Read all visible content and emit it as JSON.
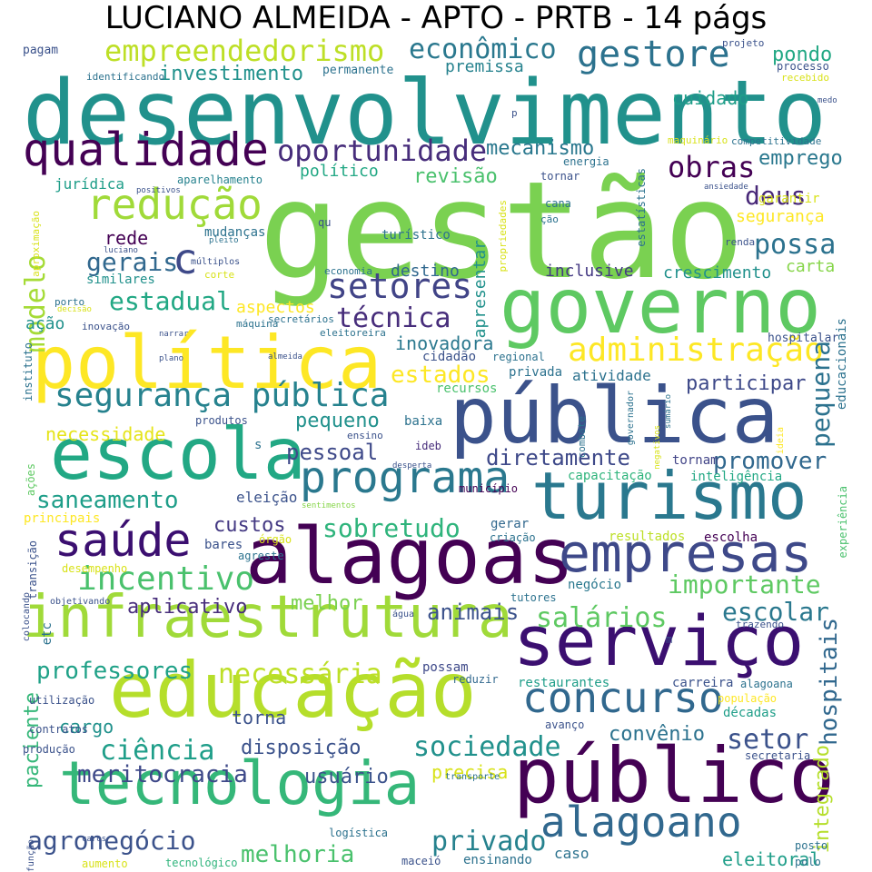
{
  "title": "LUCIANO ALMEIDA - APTO - PRTB - 14 págs",
  "words": [
    {
      "text": "gestão",
      "color": "#7ad151"
    },
    {
      "text": "desenvolvimento",
      "color": "#21918c"
    },
    {
      "text": "governo",
      "color": "#5ec962"
    },
    {
      "text": "política",
      "color": "#fde725"
    },
    {
      "text": "pública",
      "color": "#3b528b"
    },
    {
      "text": "alagoas",
      "color": "#440154"
    },
    {
      "text": "escola",
      "color": "#22a884"
    },
    {
      "text": "turismo",
      "color": "#2a788e"
    },
    {
      "text": "educação",
      "color": "#b5de2b"
    },
    {
      "text": "infraestrutura",
      "color": "#a0da39"
    },
    {
      "text": "serviço",
      "color": "#3b0f70"
    },
    {
      "text": "público",
      "color": "#440154"
    },
    {
      "text": "tecnologia",
      "color": "#35b779"
    },
    {
      "text": "empresas",
      "color": "#3e4989"
    },
    {
      "text": "programa",
      "color": "#2a788e"
    },
    {
      "text": "qualidade",
      "color": "#440154"
    },
    {
      "text": "concurso",
      "color": "#31688e"
    },
    {
      "text": "saúde",
      "color": "#3b0f70"
    },
    {
      "text": "alagoano",
      "color": "#31688e"
    },
    {
      "text": "segurança pública",
      "color": "#26828e"
    },
    {
      "text": "redução",
      "color": "#a0da39"
    },
    {
      "text": "empreendedorismo",
      "color": "#bddf26"
    },
    {
      "text": "administração",
      "color": "#fde725"
    },
    {
      "text": "incentivo",
      "color": "#4ac16d"
    },
    {
      "text": "oportunidade",
      "color": "#472d7b"
    },
    {
      "text": "gestore",
      "color": "#2c728e"
    },
    {
      "text": "econômico",
      "color": "#2a788e"
    },
    {
      "text": "setores",
      "color": "#414487"
    },
    {
      "text": "sociedade",
      "color": "#21918c"
    },
    {
      "text": "ciência",
      "color": "#1f9e89"
    },
    {
      "text": "diretamente",
      "color": "#3e4989"
    },
    {
      "text": "sobretudo",
      "color": "#2fb47c"
    },
    {
      "text": "importante",
      "color": "#5ec962"
    },
    {
      "text": "saneamento",
      "color": "#1f9e89"
    },
    {
      "text": "estadual",
      "color": "#22a884"
    },
    {
      "text": "técnica",
      "color": "#472d7b"
    },
    {
      "text": "agronegócio",
      "color": "#3b528b"
    },
    {
      "text": "meritocracia",
      "color": "#3e4989"
    },
    {
      "text": "necessária",
      "color": "#bddf26"
    },
    {
      "text": "professores",
      "color": "#1fa187"
    },
    {
      "text": "promover",
      "color": "#31688e"
    },
    {
      "text": "salários",
      "color": "#5ec962"
    },
    {
      "text": "escolar",
      "color": "#2a788e"
    },
    {
      "text": "privado",
      "color": "#26828e"
    },
    {
      "text": "melhoria",
      "color": "#4ac16d"
    },
    {
      "text": "setor",
      "color": "#3b528b"
    },
    {
      "text": "possa",
      "color": "#2c728e"
    },
    {
      "text": "obras",
      "color": "#440154"
    },
    {
      "text": "estados",
      "color": "#fde725"
    },
    {
      "text": "modelo",
      "color": "#a5db36"
    },
    {
      "text": "gerais",
      "color": "#31688e"
    },
    {
      "text": "c",
      "color": "#3e4989"
    },
    {
      "text": "pequena",
      "color": "#2c728e"
    },
    {
      "text": "hospitais",
      "color": "#31688e"
    },
    {
      "text": "deus",
      "color": "#482878"
    },
    {
      "text": "pessoal",
      "color": "#3e4989"
    },
    {
      "text": "custos",
      "color": "#443983"
    },
    {
      "text": "aplicativo",
      "color": "#472d7b"
    },
    {
      "text": "animais",
      "color": "#3b528b"
    },
    {
      "text": "usuário",
      "color": "#3b528b"
    },
    {
      "text": "disposição",
      "color": "#3b528b"
    },
    {
      "text": "convênio",
      "color": "#2c728e"
    },
    {
      "text": "participar",
      "color": "#3e4989"
    },
    {
      "text": "pequeno",
      "color": "#21918c"
    },
    {
      "text": "inovadora",
      "color": "#2a788e"
    },
    {
      "text": "mecanismo",
      "color": "#2a788e"
    },
    {
      "text": "revisão",
      "color": "#4ac16d"
    },
    {
      "text": "pondo",
      "color": "#22a884"
    },
    {
      "text": "investimento",
      "color": "#21918c"
    },
    {
      "text": "cuidado",
      "color": "#1f9e89"
    },
    {
      "text": "emprego",
      "color": "#2a788e"
    },
    {
      "text": "segurança",
      "color": "#fde725"
    },
    {
      "text": "rede",
      "color": "#440154"
    },
    {
      "text": "melhor",
      "color": "#7ad151"
    },
    {
      "text": "necessidade",
      "color": "#e5e419"
    },
    {
      "text": "paciente",
      "color": "#35b779"
    },
    {
      "text": "cargo",
      "color": "#21918c"
    },
    {
      "text": "torna",
      "color": "#3b528b"
    },
    {
      "text": "precisa",
      "color": "#d8e219"
    },
    {
      "text": "eleitoral",
      "color": "#1f9e89"
    },
    {
      "text": "integrado",
      "color": "#b5de2b"
    },
    {
      "text": "aspectos",
      "color": "#fde725"
    },
    {
      "text": "ação",
      "color": "#21918c"
    },
    {
      "text": "inclusive",
      "color": "#443983"
    },
    {
      "text": "crescimento",
      "color": "#21918c"
    },
    {
      "text": "destino",
      "color": "#31688e"
    },
    {
      "text": "carta",
      "color": "#86d549"
    },
    {
      "text": "político",
      "color": "#22a884"
    },
    {
      "text": "premissa",
      "color": "#26828e"
    },
    {
      "text": "apresentar",
      "color": "#21918c"
    },
    {
      "text": "atividade",
      "color": "#2c728e"
    },
    {
      "text": "eleição",
      "color": "#3b528b"
    },
    {
      "text": "mudanças",
      "color": "#2c728e"
    },
    {
      "text": "turístico",
      "color": "#2c728e"
    },
    {
      "text": "jurídica",
      "color": "#1f9e89"
    },
    {
      "text": "aparelhamento",
      "color": "#26828e"
    },
    {
      "text": "similares",
      "color": "#21918c"
    },
    {
      "text": "cidadão",
      "color": "#3b528b"
    },
    {
      "text": "baixa",
      "color": "#2c728e"
    },
    {
      "text": "recursos",
      "color": "#4ac16d"
    },
    {
      "text": "ideb",
      "color": "#472d7b"
    },
    {
      "text": "tornam",
      "color": "#414487"
    },
    {
      "text": "capacitação",
      "color": "#2fb47c"
    },
    {
      "text": "inteligência",
      "color": "#22a884"
    },
    {
      "text": "educacionais",
      "color": "#2c728e"
    },
    {
      "text": "gerar",
      "color": "#31688e"
    },
    {
      "text": "resultados",
      "color": "#bddf26"
    },
    {
      "text": "escolha",
      "color": "#440154"
    },
    {
      "text": "experiência",
      "color": "#4ac16d"
    },
    {
      "text": "negócio",
      "color": "#2a788e"
    },
    {
      "text": "tutores",
      "color": "#2c728e"
    },
    {
      "text": "restaurantes",
      "color": "#1f9e89"
    },
    {
      "text": "carreira",
      "color": "#3b528b"
    },
    {
      "text": "alagoana",
      "color": "#2c728e"
    },
    {
      "text": "reduzir",
      "color": "#31688e"
    },
    {
      "text": "possam",
      "color": "#3e4989"
    },
    {
      "text": "população",
      "color": "#fde725"
    },
    {
      "text": "décadas",
      "color": "#1f9e89"
    },
    {
      "text": "avanço",
      "color": "#3b528b"
    },
    {
      "text": "secretaria",
      "color": "#3b528b"
    },
    {
      "text": "posto",
      "color": "#2c728e"
    },
    {
      "text": "polo",
      "color": "#2c728e"
    },
    {
      "text": "transporte",
      "color": "#2c728e"
    },
    {
      "text": "logística",
      "color": "#2c728e"
    },
    {
      "text": "ensinando",
      "color": "#2c728e"
    },
    {
      "text": "caso",
      "color": "#2c728e"
    },
    {
      "text": "maceió",
      "color": "#3b528b"
    },
    {
      "text": "tecnológico",
      "color": "#2fb47c"
    },
    {
      "text": "aumento",
      "color": "#d8e219"
    },
    {
      "text": "função",
      "color": "#3b528b"
    },
    {
      "text": "caros",
      "color": "#3b528b"
    },
    {
      "text": "produção",
      "color": "#3b528b"
    },
    {
      "text": "contratos",
      "color": "#3b528b"
    },
    {
      "text": "utilização",
      "color": "#3b528b"
    },
    {
      "text": "objetivando",
      "color": "#3b528b"
    },
    {
      "text": "colocando",
      "color": "#3b528b"
    },
    {
      "text": "etc",
      "color": "#2c728e"
    },
    {
      "text": "desempenho",
      "color": "#d8e219"
    },
    {
      "text": "transição",
      "color": "#3b528b"
    },
    {
      "text": "principais",
      "color": "#fde725"
    },
    {
      "text": "ações",
      "color": "#5ec962"
    },
    {
      "text": "bares",
      "color": "#3b528b"
    },
    {
      "text": "órgão",
      "color": "#d8e219"
    },
    {
      "text": "agreste",
      "color": "#2c728e"
    },
    {
      "text": "criação",
      "color": "#2c728e"
    },
    {
      "text": "município",
      "color": "#440154"
    },
    {
      "text": "água",
      "color": "#3b528b"
    },
    {
      "text": "sentimentos",
      "color": "#86d549"
    },
    {
      "text": "desperta",
      "color": "#3b528b"
    },
    {
      "text": "ensino",
      "color": "#3b528b"
    },
    {
      "text": "produtos",
      "color": "#3b528b"
    },
    {
      "text": "s",
      "color": "#2c728e"
    },
    {
      "text": "combate",
      "color": "#2c728e"
    },
    {
      "text": "governador",
      "color": "#2c728e"
    },
    {
      "text": "sumário",
      "color": "#2c728e"
    },
    {
      "text": "negativos",
      "color": "#d8e219"
    },
    {
      "text": "ideia",
      "color": "#fde725"
    },
    {
      "text": "regional",
      "color": "#2c728e"
    },
    {
      "text": "privada",
      "color": "#2c728e"
    },
    {
      "text": "instituto",
      "color": "#2c728e"
    },
    {
      "text": "hospitalar",
      "color": "#3b528b"
    },
    {
      "text": "secretários",
      "color": "#2c728e"
    },
    {
      "text": "eleitoreira",
      "color": "#2c728e"
    },
    {
      "text": "máquina",
      "color": "#2c728e"
    },
    {
      "text": "almeida",
      "color": "#3b528b"
    },
    {
      "text": "plano",
      "color": "#3b528b"
    },
    {
      "text": "narrar",
      "color": "#3b528b"
    },
    {
      "text": "inovação",
      "color": "#3b528b"
    },
    {
      "text": "decisão",
      "color": "#d8e219"
    },
    {
      "text": "porto",
      "color": "#2c728e"
    },
    {
      "text": "economia",
      "color": "#2c728e"
    },
    {
      "text": "múltiplos",
      "color": "#3b528b"
    },
    {
      "text": "corte",
      "color": "#d8e219"
    },
    {
      "text": "pleito",
      "color": "#2c728e"
    },
    {
      "text": "luciano",
      "color": "#3b528b"
    },
    {
      "text": "aproximação",
      "color": "#d8e219"
    },
    {
      "text": "positivos",
      "color": "#3b528b"
    },
    {
      "text": "qu",
      "color": "#3b528b"
    },
    {
      "text": "propriedades",
      "color": "#d8e219"
    },
    {
      "text": "ção",
      "color": "#2c728e"
    },
    {
      "text": "cana",
      "color": "#2c728e"
    },
    {
      "text": "estatísticas",
      "color": "#2c728e"
    },
    {
      "text": "energia",
      "color": "#2c728e"
    },
    {
      "text": "tornar",
      "color": "#3b528b"
    },
    {
      "text": "renda",
      "color": "#3b528b"
    },
    {
      "text": "ansiedade",
      "color": "#3b528b"
    },
    {
      "text": "garantir",
      "color": "#d8e219"
    },
    {
      "text": "maquinário",
      "color": "#d8e219"
    },
    {
      "text": "competitividade",
      "color": "#2c728e"
    },
    {
      "text": "medo",
      "color": "#3b528b"
    },
    {
      "text": "recebido",
      "color": "#d8e219"
    },
    {
      "text": "processo",
      "color": "#3b528b"
    },
    {
      "text": "projeto",
      "color": "#3b528b"
    },
    {
      "text": "permanente",
      "color": "#2c728e"
    },
    {
      "text": "identificando",
      "color": "#2c728e"
    },
    {
      "text": "pagam",
      "color": "#3b528b"
    },
    {
      "text": "p",
      "color": "#3b528b"
    },
    {
      "text": "m",
      "color": "#3b528b"
    },
    {
      "text": "trazendo",
      "color": "#3b528b"
    }
  ]
}
